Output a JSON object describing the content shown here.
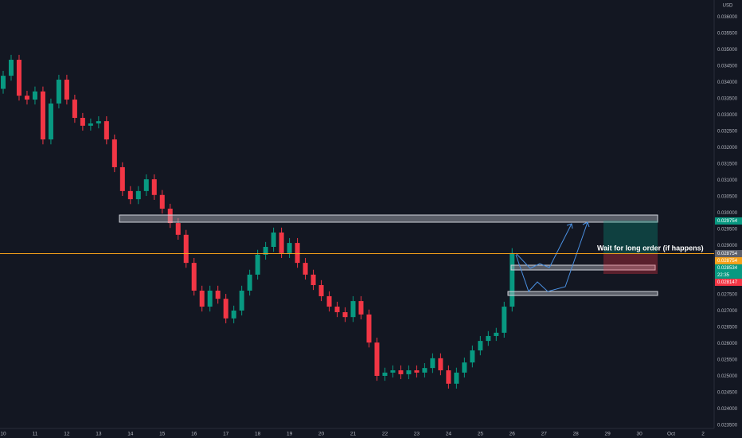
{
  "chart_data": {
    "type": "candlestick",
    "currency": "USD",
    "annotation": "Wait for long order (if happens)",
    "up_color": "#089981",
    "down_color": "#f23645",
    "grid": false,
    "x": [
      0,
      0.25,
      0.5,
      0.75,
      1,
      1.25,
      1.5,
      1.75,
      2,
      2.25,
      2.5,
      2.75,
      3,
      3.25,
      3.5,
      3.75,
      4,
      4.25,
      4.5,
      4.75,
      5,
      5.25,
      5.5,
      5.75,
      6,
      6.25,
      6.5,
      6.75,
      7,
      7.25,
      7.5,
      7.75,
      8,
      8.25,
      8.5,
      8.75,
      9,
      9.25,
      9.5,
      9.75,
      10,
      10.25,
      10.5,
      10.75,
      11,
      11.25,
      11.5,
      11.75,
      12,
      12.25,
      12.5,
      12.75,
      13,
      13.25,
      13.5,
      13.75,
      14,
      14.25,
      14.5,
      14.75,
      15,
      15.25,
      15.5,
      15.75,
      16
    ],
    "open": [
      0.0338,
      0.0342,
      0.03469,
      0.03359,
      0.03347,
      0.03372,
      0.03225,
      0.03335,
      0.03408,
      0.03347,
      0.03291,
      0.03267,
      0.03274,
      0.03281,
      0.03225,
      0.0314,
      0.03067,
      0.03042,
      0.03067,
      0.03103,
      0.03055,
      0.03013,
      0.02969,
      0.02933,
      0.02847,
      0.02762,
      0.02713,
      0.02762,
      0.02737,
      0.02677,
      0.02701,
      0.02762,
      0.02811,
      0.02872,
      0.02896,
      0.0294,
      0.02877,
      0.02908,
      0.02847,
      0.02811,
      0.02779,
      0.02745,
      0.02713,
      0.02696,
      0.02681,
      0.0273,
      0.02689,
      0.02603,
      0.02501,
      0.02511,
      0.02518,
      0.02506,
      0.02518,
      0.02511,
      0.02525,
      0.02555,
      0.02518,
      0.02477,
      0.02511,
      0.02542,
      0.02579,
      0.02608,
      0.02623,
      0.02633,
      0.02713
    ],
    "high": [
      0.03435,
      0.03484,
      0.03484,
      0.03374,
      0.03387,
      0.03387,
      0.0335,
      0.03423,
      0.03423,
      0.03362,
      0.03306,
      0.03289,
      0.03296,
      0.03296,
      0.0324,
      0.03155,
      0.03082,
      0.03082,
      0.03118,
      0.03118,
      0.0307,
      0.03028,
      0.02984,
      0.02948,
      0.02862,
      0.02777,
      0.02777,
      0.02777,
      0.02752,
      0.02716,
      0.02777,
      0.02826,
      0.02887,
      0.02911,
      0.02955,
      0.02955,
      0.02923,
      0.02923,
      0.02862,
      0.02826,
      0.02794,
      0.0276,
      0.02728,
      0.02711,
      0.02745,
      0.02745,
      0.02704,
      0.02618,
      0.02526,
      0.02533,
      0.02533,
      0.02533,
      0.02533,
      0.0254,
      0.0257,
      0.0257,
      0.02533,
      0.02526,
      0.02557,
      0.02594,
      0.02623,
      0.02638,
      0.02648,
      0.02728,
      0.02892
    ],
    "low": [
      0.03365,
      0.03405,
      0.03344,
      0.03332,
      0.03332,
      0.0321,
      0.0321,
      0.0332,
      0.03332,
      0.03276,
      0.03252,
      0.03252,
      0.03259,
      0.0321,
      0.03125,
      0.03052,
      0.03027,
      0.03027,
      0.03052,
      0.0304,
      0.02998,
      0.02954,
      0.02918,
      0.02832,
      0.02747,
      0.02698,
      0.02698,
      0.02722,
      0.02662,
      0.02662,
      0.02686,
      0.02747,
      0.02796,
      0.02857,
      0.02881,
      0.02862,
      0.02862,
      0.02832,
      0.02796,
      0.02764,
      0.0273,
      0.02698,
      0.02681,
      0.02666,
      0.02666,
      0.02674,
      0.02588,
      0.02486,
      0.02486,
      0.02496,
      0.02491,
      0.02491,
      0.02496,
      0.02496,
      0.0251,
      0.02503,
      0.02462,
      0.02462,
      0.02496,
      0.02527,
      0.02564,
      0.02593,
      0.02608,
      0.02618,
      0.02698
    ],
    "close": [
      0.0342,
      0.03469,
      0.03359,
      0.03347,
      0.03372,
      0.03225,
      0.03335,
      0.03408,
      0.03347,
      0.03291,
      0.03267,
      0.03274,
      0.03281,
      0.03225,
      0.0314,
      0.03067,
      0.03042,
      0.03067,
      0.03103,
      0.03055,
      0.03013,
      0.02969,
      0.02933,
      0.02847,
      0.02762,
      0.02713,
      0.02762,
      0.02737,
      0.02677,
      0.02701,
      0.02762,
      0.02811,
      0.02872,
      0.02896,
      0.0294,
      0.02877,
      0.02908,
      0.02847,
      0.02811,
      0.02779,
      0.02745,
      0.02713,
      0.02696,
      0.02681,
      0.0273,
      0.02689,
      0.02603,
      0.02501,
      0.02511,
      0.02518,
      0.02506,
      0.02518,
      0.02511,
      0.02525,
      0.02555,
      0.02518,
      0.02477,
      0.02511,
      0.02542,
      0.02579,
      0.02608,
      0.02623,
      0.02633,
      0.02713,
      0.02877
    ],
    "xlim": [
      -0.1,
      22.35
    ],
    "xticks": [
      {
        "value": 0,
        "label": "10"
      },
      {
        "value": 1,
        "label": "11"
      },
      {
        "value": 2,
        "label": "12"
      },
      {
        "value": 3,
        "label": "13"
      },
      {
        "value": 4,
        "label": "14"
      },
      {
        "value": 5,
        "label": "15"
      },
      {
        "value": 6,
        "label": "16"
      },
      {
        "value": 7,
        "label": "17"
      },
      {
        "value": 8,
        "label": "18"
      },
      {
        "value": 9,
        "label": "19"
      },
      {
        "value": 10,
        "label": "20"
      },
      {
        "value": 11,
        "label": "21"
      },
      {
        "value": 12,
        "label": "22"
      },
      {
        "value": 13,
        "label": "23"
      },
      {
        "value": 14,
        "label": "24"
      },
      {
        "value": 15,
        "label": "25"
      },
      {
        "value": 16,
        "label": "26"
      },
      {
        "value": 17,
        "label": "27"
      },
      {
        "value": 18,
        "label": "28"
      },
      {
        "value": 19,
        "label": "29"
      },
      {
        "value": 20,
        "label": "30"
      },
      {
        "value": 21,
        "label": "Oct"
      },
      {
        "value": 22,
        "label": "2"
      }
    ],
    "ylim": [
      0.0234,
      0.03652
    ],
    "yticks": [
      {
        "value": 0.036,
        "label": "0.036000"
      },
      {
        "value": 0.0355,
        "label": "0.035500"
      },
      {
        "value": 0.035,
        "label": "0.035000"
      },
      {
        "value": 0.0345,
        "label": "0.034500"
      },
      {
        "value": 0.034,
        "label": "0.034000"
      },
      {
        "value": 0.0335,
        "label": "0.033500"
      },
      {
        "value": 0.033,
        "label": "0.033000"
      },
      {
        "value": 0.0325,
        "label": "0.032500"
      },
      {
        "value": 0.032,
        "label": "0.032000"
      },
      {
        "value": 0.0315,
        "label": "0.031500"
      },
      {
        "value": 0.031,
        "label": "0.031000"
      },
      {
        "value": 0.0305,
        "label": "0.030500"
      },
      {
        "value": 0.03,
        "label": "0.030000"
      },
      {
        "value": 0.0295,
        "label": "0.029500"
      },
      {
        "value": 0.029,
        "label": "0.029000"
      },
      {
        "value": 0.0275,
        "label": "0.027500"
      },
      {
        "value": 0.027,
        "label": "0.027000"
      },
      {
        "value": 0.0265,
        "label": "0.026500"
      },
      {
        "value": 0.026,
        "label": "0.026000"
      },
      {
        "value": 0.0255,
        "label": "0.025500"
      },
      {
        "value": 0.025,
        "label": "0.025000"
      },
      {
        "value": 0.0245,
        "label": "0.024500"
      },
      {
        "value": 0.024,
        "label": "0.024000"
      },
      {
        "value": 0.0235,
        "label": "0.023500"
      }
    ],
    "price_labels": [
      {
        "value": 0.029754,
        "label": "0.029754",
        "color": "#089981"
      },
      {
        "value": 0.028754,
        "label": "0.028754",
        "color": "#5d606b"
      },
      {
        "value": 0.028754,
        "label": "0.028754",
        "color": "#f7a21b",
        "line": true
      },
      {
        "value": 0.028534,
        "label": "0.028534",
        "color": "#089981",
        "countdown": "22:35"
      },
      {
        "value": 0.028147,
        "label": "0.028147",
        "color": "#f23645"
      }
    ]
  }
}
